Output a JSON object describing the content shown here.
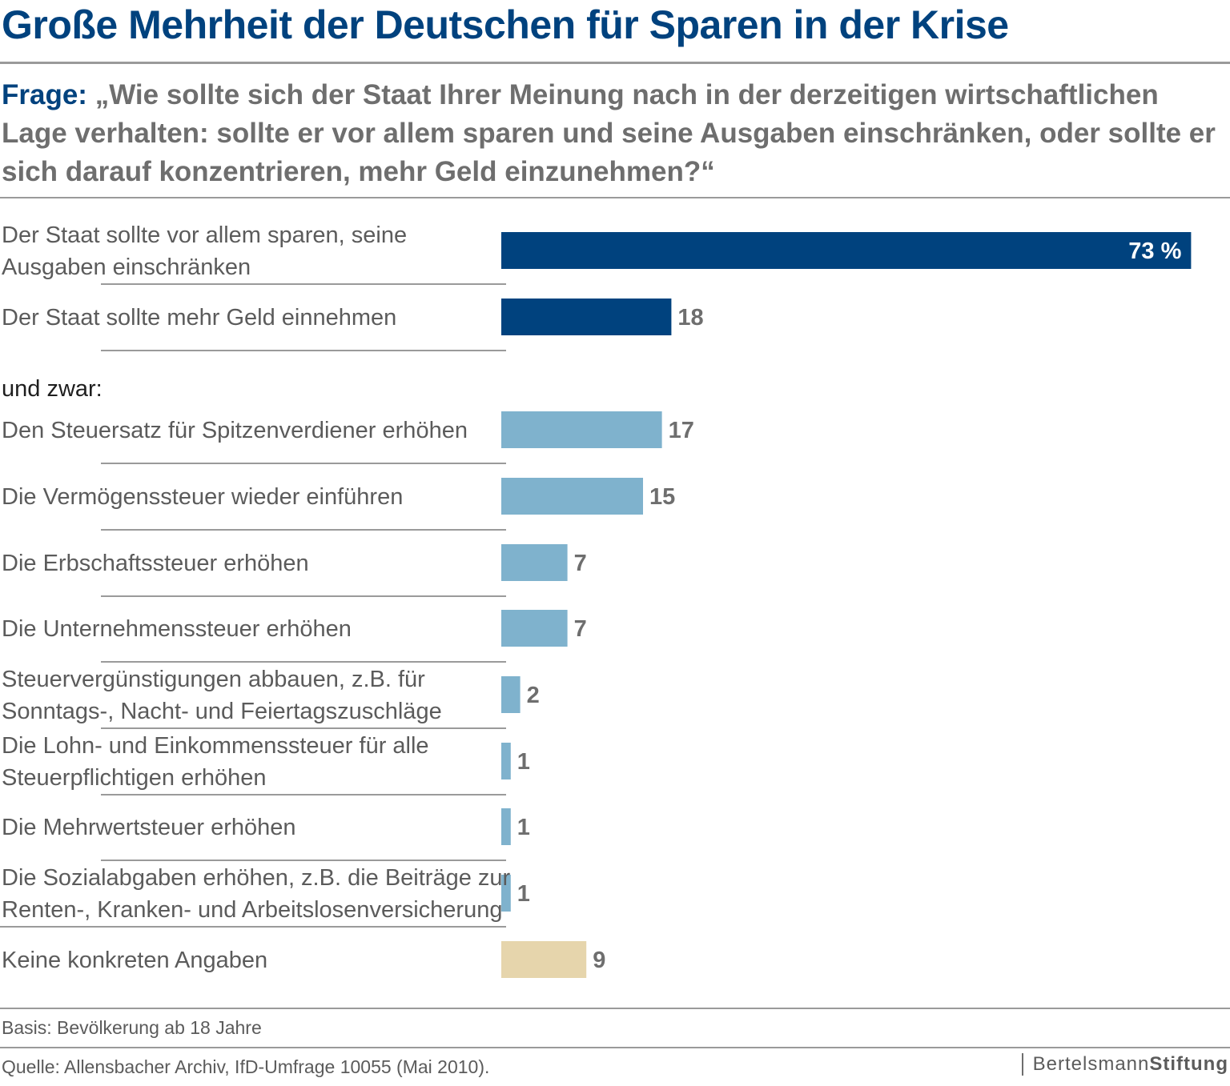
{
  "title": "Große Mehrheit der Deutschen für Sparen in der Krise",
  "question": {
    "label": "Frage:",
    "text": "„Wie sollte sich der Staat Ihrer Meinung nach in der derzeitigen wirtschaftlichen Lage verhalten: sollte er vor allem sparen und seine Ausgaben einschränken, oder sollte er sich darauf konzentrieren, mehr Geld einzunehmen?“"
  },
  "colors": {
    "primary": "#00427e",
    "secondary": "#7fb2cd",
    "neutral": "#e6d5ac",
    "grey_text": "#6e6e6e"
  },
  "chart_data": {
    "type": "bar",
    "orientation": "horizontal",
    "unit": "%",
    "section_label": "und zwar:",
    "bars": [
      {
        "label_lines": [
          "Der Staat sollte vor allem sparen, seine",
          "Ausgaben einschränken"
        ],
        "value": 73,
        "value_label": "73 %",
        "group": "primary"
      },
      {
        "label_lines": [
          "Der Staat sollte mehr Geld einnehmen"
        ],
        "value": 18,
        "value_label": "18",
        "group": "primary"
      },
      {
        "label_lines": [
          "Den Steuersatz für Spitzenverdiener erhöhen"
        ],
        "value": 17,
        "value_label": "17",
        "group": "secondary"
      },
      {
        "label_lines": [
          "Die Vermögenssteuer wieder einführen"
        ],
        "value": 15,
        "value_label": "15",
        "group": "secondary"
      },
      {
        "label_lines": [
          "Die Erbschaftssteuer erhöhen"
        ],
        "value": 7,
        "value_label": "7",
        "group": "secondary"
      },
      {
        "label_lines": [
          "Die Unternehmenssteuer erhöhen"
        ],
        "value": 7,
        "value_label": "7",
        "group": "secondary"
      },
      {
        "label_lines": [
          "Steuervergünstigungen abbauen, z.B. für",
          "Sonntags-, Nacht- und Feiertagszuschläge"
        ],
        "value": 2,
        "value_label": "2",
        "group": "secondary"
      },
      {
        "label_lines": [
          "Die Lohn- und Einkommenssteuer für alle",
          "Steuerpflichtigen erhöhen"
        ],
        "value": 1,
        "value_label": "1",
        "group": "secondary"
      },
      {
        "label_lines": [
          "Die Mehrwertsteuer erhöhen"
        ],
        "value": 1,
        "value_label": "1",
        "group": "secondary"
      },
      {
        "label_lines": [
          "Die Sozialabgaben erhöhen, z.B. die Beiträge zur",
          "Renten-, Kranken- und Arbeitslosenversicherung"
        ],
        "value": 1,
        "value_label": "1",
        "group": "secondary"
      },
      {
        "label_lines": [
          "Keine konkreten Angaben"
        ],
        "value": 9,
        "value_label": "9",
        "group": "neutral"
      }
    ]
  },
  "footer": {
    "basis": "Basis: Bevölkerung ab 18 Jahre",
    "source": "Quelle: Allensbacher Archiv, IfD-Umfrage 10055 (Mai 2010).",
    "brand_part1": "Bertelsmann",
    "brand_part2": "Stiftung"
  }
}
